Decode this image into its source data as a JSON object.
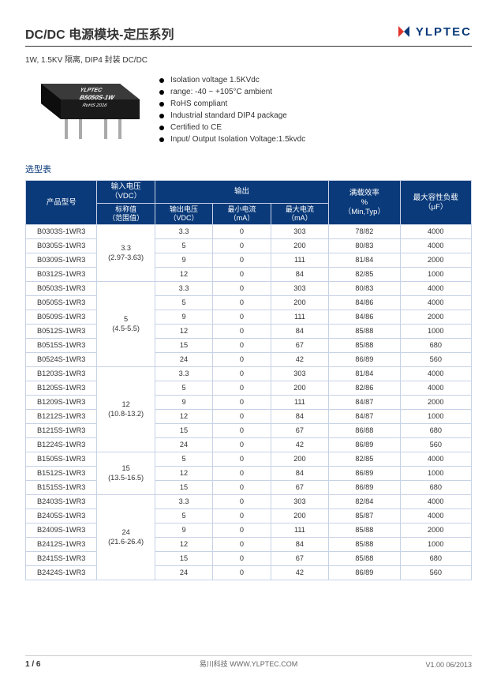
{
  "header": {
    "title": "DC/DC 电源模块-定压系列",
    "brand_text": "YLPTEC",
    "subtitle": "1W, 1.5KV 隔离, DIP4 封装  DC/DC"
  },
  "chip": {
    "brand": "YLPTEC",
    "model": "B5050S-1W",
    "rohs": "RoHS",
    "year": "2016"
  },
  "features": [
    "Isolation voltage 1.5KVdc",
    "range: -40 ~ +105°C ambient",
    "RoHS compliant",
    "Industrial standard DIP4 package",
    "Certified to CE",
    "Input/ Output Isolation Voltage:1.5kvdc"
  ],
  "section_label": "选型表",
  "table": {
    "headers": {
      "col_product": "产品型号",
      "col_input_grp": "输入电压\n（VDC）",
      "col_output_grp": "输出",
      "col_eff": "满载效率\n%\n（Min,Typ）",
      "col_cap": "最大容性负载\n（μF）",
      "col_input_nominal": "标称值\n（范围值）",
      "col_out_v": "输出电压\n（VDC）",
      "col_out_min_i": "最小电流\n（mA）",
      "col_out_max_i": "最大电流\n（mA）"
    },
    "groups": [
      {
        "input_label": "3.3\n(2.97-3.63)",
        "rows": [
          {
            "pn": "B0303S-1WR3",
            "vout": "3.3",
            "imin": "0",
            "imax": "303",
            "eff": "78/82",
            "cap": "4000"
          },
          {
            "pn": "B0305S-1WR3",
            "vout": "5",
            "imin": "0",
            "imax": "200",
            "eff": "80/83",
            "cap": "4000"
          },
          {
            "pn": "B0309S-1WR3",
            "vout": "9",
            "imin": "0",
            "imax": "111",
            "eff": "81/84",
            "cap": "2000"
          },
          {
            "pn": "B0312S-1WR3",
            "vout": "12",
            "imin": "0",
            "imax": "84",
            "eff": "82/85",
            "cap": "1000"
          }
        ]
      },
      {
        "input_label": "5\n(4.5-5.5)",
        "rows": [
          {
            "pn": "B0503S-1WR3",
            "vout": "3.3",
            "imin": "0",
            "imax": "303",
            "eff": "80/83",
            "cap": "4000"
          },
          {
            "pn": "B0505S-1WR3",
            "vout": "5",
            "imin": "0",
            "imax": "200",
            "eff": "84/86",
            "cap": "4000"
          },
          {
            "pn": "B0509S-1WR3",
            "vout": "9",
            "imin": "0",
            "imax": "111",
            "eff": "84/86",
            "cap": "2000"
          },
          {
            "pn": "B0512S-1WR3",
            "vout": "12",
            "imin": "0",
            "imax": "84",
            "eff": "85/88",
            "cap": "1000"
          },
          {
            "pn": "B0515S-1WR3",
            "vout": "15",
            "imin": "0",
            "imax": "67",
            "eff": "85/88",
            "cap": "680"
          },
          {
            "pn": "B0524S-1WR3",
            "vout": "24",
            "imin": "0",
            "imax": "42",
            "eff": "86/89",
            "cap": "560"
          }
        ]
      },
      {
        "input_label": "12\n(10.8-13.2)",
        "rows": [
          {
            "pn": "B1203S-1WR3",
            "vout": "3.3",
            "imin": "0",
            "imax": "303",
            "eff": "81/84",
            "cap": "4000"
          },
          {
            "pn": "B1205S-1WR3",
            "vout": "5",
            "imin": "0",
            "imax": "200",
            "eff": "82/86",
            "cap": "4000"
          },
          {
            "pn": "B1209S-1WR3",
            "vout": "9",
            "imin": "0",
            "imax": "111",
            "eff": "84/87",
            "cap": "2000"
          },
          {
            "pn": "B1212S-1WR3",
            "vout": "12",
            "imin": "0",
            "imax": "84",
            "eff": "84/87",
            "cap": "1000"
          },
          {
            "pn": "B1215S-1WR3",
            "vout": "15",
            "imin": "0",
            "imax": "67",
            "eff": "86/88",
            "cap": "680"
          },
          {
            "pn": "B1224S-1WR3",
            "vout": "24",
            "imin": "0",
            "imax": "42",
            "eff": "86/89",
            "cap": "560"
          }
        ]
      },
      {
        "input_label": "15\n(13.5-16.5)",
        "rows": [
          {
            "pn": "B1505S-1WR3",
            "vout": "5",
            "imin": "0",
            "imax": "200",
            "eff": "82/85",
            "cap": "4000"
          },
          {
            "pn": "B1512S-1WR3",
            "vout": "12",
            "imin": "0",
            "imax": "84",
            "eff": "86/89",
            "cap": "1000"
          },
          {
            "pn": "B1515S-1WR3",
            "vout": "15",
            "imin": "0",
            "imax": "67",
            "eff": "86/89",
            "cap": "680"
          }
        ]
      },
      {
        "input_label": "24\n(21.6-26.4)",
        "rows": [
          {
            "pn": "B2403S-1WR3",
            "vout": "3.3",
            "imin": "0",
            "imax": "303",
            "eff": "82/84",
            "cap": "4000"
          },
          {
            "pn": "B2405S-1WR3",
            "vout": "5",
            "imin": "0",
            "imax": "200",
            "eff": "85/87",
            "cap": "4000"
          },
          {
            "pn": "B2409S-1WR3",
            "vout": "9",
            "imin": "0",
            "imax": "111",
            "eff": "85/88",
            "cap": "2000"
          },
          {
            "pn": "B2412S-1WR3",
            "vout": "12",
            "imin": "0",
            "imax": "84",
            "eff": "85/88",
            "cap": "1000"
          },
          {
            "pn": "B2415S-1WR3",
            "vout": "15",
            "imin": "0",
            "imax": "67",
            "eff": "85/88",
            "cap": "680"
          },
          {
            "pn": "B2424S-1WR3",
            "vout": "24",
            "imin": "0",
            "imax": "42",
            "eff": "86/89",
            "cap": "560"
          }
        ]
      }
    ]
  },
  "footer": {
    "page": "1 / 6",
    "company": "易川科技 WWW.YLPTEC.COM",
    "version": "V1.00    06/2013"
  },
  "colors": {
    "primary": "#0a3a7a",
    "border": "#c7d2e6",
    "text": "#333333"
  }
}
